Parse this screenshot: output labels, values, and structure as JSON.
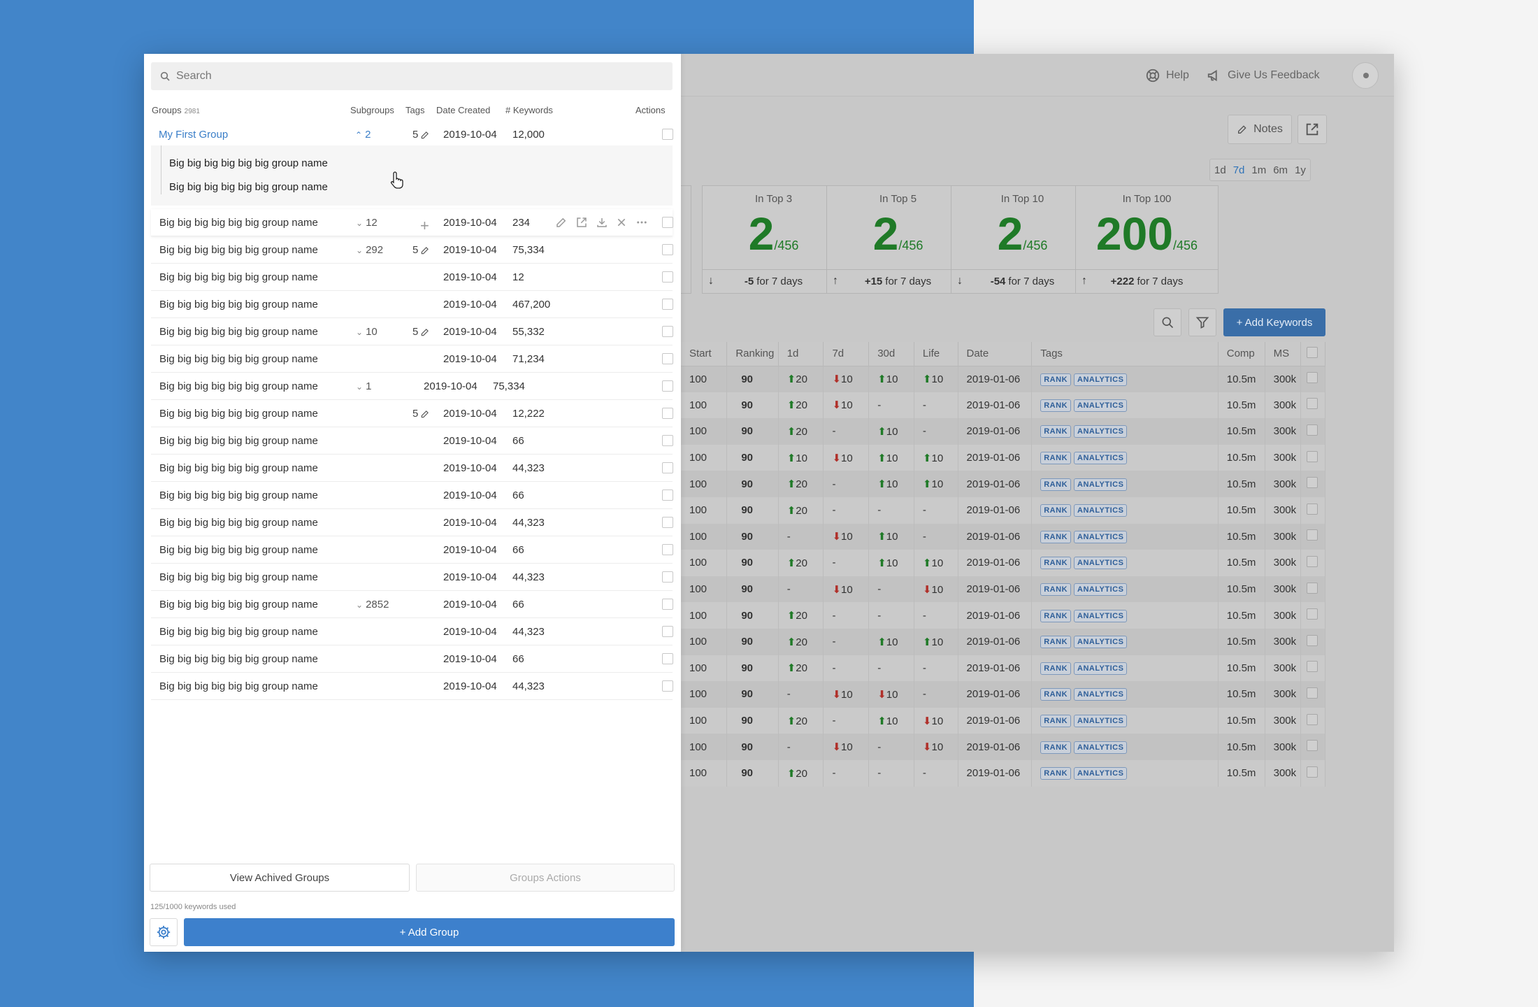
{
  "header": {
    "help_label": "Help",
    "feedback_label": "Give Us Feedback"
  },
  "toolbar": {
    "notes_label": "Notes",
    "add_keywords_label": "+ Add Keywords"
  },
  "periods": [
    "1d",
    "7d",
    "1m",
    "6m",
    "1y"
  ],
  "active_period": "7d",
  "cards": [
    {
      "title": "In Top 3",
      "value": "2",
      "total": "/456",
      "direction": "down",
      "delta": "-5",
      "suffix": "for 7 days"
    },
    {
      "title": "In Top 5",
      "value": "2",
      "total": "/456",
      "direction": "up",
      "delta": "+15",
      "suffix": "for 7 days"
    },
    {
      "title": "In Top 10",
      "value": "2",
      "total": "/456",
      "direction": "down",
      "delta": "-54",
      "suffix": "for 7 days"
    },
    {
      "title": "In Top 100",
      "value": "200",
      "total": "/456",
      "direction": "up",
      "delta": "+222",
      "suffix": "for 7 days"
    }
  ],
  "keyword_table": {
    "columns": [
      "Start",
      "Ranking",
      "1d",
      "7d",
      "30d",
      "Life",
      "Date",
      "Tags",
      "Comp",
      "MS"
    ],
    "rows": [
      {
        "start": "100",
        "ranking": "90",
        "d1": "+20",
        "d7": "-10",
        "d30": "+10",
        "life": "+10",
        "date": "2019-01-06",
        "tags": [
          "RANK",
          "ANALYTICS"
        ],
        "comp": "10.5m",
        "ms": "300k"
      },
      {
        "start": "100",
        "ranking": "90",
        "d1": "+20",
        "d7": "-10",
        "d30": "-",
        "life": "-",
        "date": "2019-01-06",
        "tags": [
          "RANK",
          "ANALYTICS"
        ],
        "comp": "10.5m",
        "ms": "300k"
      },
      {
        "start": "100",
        "ranking": "90",
        "d1": "+20",
        "d7": "-",
        "d30": "+10",
        "life": "-",
        "date": "2019-01-06",
        "tags": [
          "RANK",
          "ANALYTICS"
        ],
        "comp": "10.5m",
        "ms": "300k"
      },
      {
        "start": "100",
        "ranking": "90",
        "d1": "+10",
        "d7": "-10",
        "d30": "+10",
        "life": "+10",
        "date": "2019-01-06",
        "tags": [
          "RANK",
          "ANALYTICS"
        ],
        "comp": "10.5m",
        "ms": "300k"
      },
      {
        "start": "100",
        "ranking": "90",
        "d1": "+20",
        "d7": "-",
        "d30": "+10",
        "life": "+10",
        "date": "2019-01-06",
        "tags": [
          "RANK",
          "ANALYTICS"
        ],
        "comp": "10.5m",
        "ms": "300k"
      },
      {
        "start": "100",
        "ranking": "90",
        "d1": "+20",
        "d7": "-",
        "d30": "-",
        "life": "-",
        "date": "2019-01-06",
        "tags": [
          "RANK",
          "ANALYTICS"
        ],
        "comp": "10.5m",
        "ms": "300k"
      },
      {
        "start": "100",
        "ranking": "90",
        "d1": "-",
        "d7": "-10",
        "d30": "+10",
        "life": "-",
        "date": "2019-01-06",
        "tags": [
          "RANK",
          "ANALYTICS"
        ],
        "comp": "10.5m",
        "ms": "300k"
      },
      {
        "start": "100",
        "ranking": "90",
        "d1": "+20",
        "d7": "-",
        "d30": "+10",
        "life": "+10",
        "date": "2019-01-06",
        "tags": [
          "RANK",
          "ANALYTICS"
        ],
        "comp": "10.5m",
        "ms": "300k"
      },
      {
        "start": "100",
        "ranking": "90",
        "d1": "-",
        "d7": "-10",
        "d30": "-",
        "life": "-10",
        "date": "2019-01-06",
        "tags": [
          "RANK",
          "ANALYTICS"
        ],
        "comp": "10.5m",
        "ms": "300k"
      },
      {
        "start": "100",
        "ranking": "90",
        "d1": "+20",
        "d7": "-",
        "d30": "-",
        "life": "-",
        "date": "2019-01-06",
        "tags": [
          "RANK",
          "ANALYTICS"
        ],
        "comp": "10.5m",
        "ms": "300k"
      },
      {
        "start": "100",
        "ranking": "90",
        "d1": "+20",
        "d7": "-",
        "d30": "+10",
        "life": "+10",
        "date": "2019-01-06",
        "tags": [
          "RANK",
          "ANALYTICS"
        ],
        "comp": "10.5m",
        "ms": "300k"
      },
      {
        "start": "100",
        "ranking": "90",
        "d1": "+20",
        "d7": "-",
        "d30": "-",
        "life": "-",
        "date": "2019-01-06",
        "tags": [
          "RANK",
          "ANALYTICS"
        ],
        "comp": "10.5m",
        "ms": "300k"
      },
      {
        "start": "100",
        "ranking": "90",
        "d1": "-",
        "d7": "-10",
        "d30": "-10",
        "life": "-",
        "date": "2019-01-06",
        "tags": [
          "RANK",
          "ANALYTICS"
        ],
        "comp": "10.5m",
        "ms": "300k"
      },
      {
        "start": "100",
        "ranking": "90",
        "d1": "+20",
        "d7": "-",
        "d30": "+10",
        "life": "-10",
        "date": "2019-01-06",
        "tags": [
          "RANK",
          "ANALYTICS"
        ],
        "comp": "10.5m",
        "ms": "300k"
      },
      {
        "start": "100",
        "ranking": "90",
        "d1": "-",
        "d7": "-10",
        "d30": "-",
        "life": "-10",
        "date": "2019-01-06",
        "tags": [
          "RANK",
          "ANALYTICS"
        ],
        "comp": "10.5m",
        "ms": "300k"
      },
      {
        "start": "100",
        "ranking": "90",
        "d1": "+20",
        "d7": "-",
        "d30": "-",
        "life": "-",
        "date": "2019-01-06",
        "tags": [
          "RANK",
          "ANALYTICS"
        ],
        "comp": "10.5m",
        "ms": "300k"
      }
    ]
  },
  "groups_panel": {
    "search_placeholder": "Search",
    "headers": {
      "groups": "Groups",
      "groups_count": "2981",
      "subgroups": "Subgroups",
      "tags": "Tags",
      "date_created": "Date Created",
      "keywords": "# Keywords",
      "actions": "Actions"
    },
    "first_group": {
      "name": "My First Group",
      "subgroups": "2",
      "tags": "5",
      "date": "2019-10-04",
      "keywords": "12,000"
    },
    "subgroups": [
      "Big big big big big big  group name",
      "Big big big big big big  group name"
    ],
    "rows": [
      {
        "name": "Big big big big big big  group name",
        "subgroups": "12",
        "tags": "",
        "date": "2019-10-04",
        "keywords": "234"
      },
      {
        "name": "Big big big big big big  group name",
        "subgroups": "292",
        "tags": "5",
        "date": "2019-10-04",
        "keywords": "75,334"
      },
      {
        "name": "Big big big big big big  group name",
        "subgroups": "",
        "tags": "",
        "date": "2019-10-04",
        "keywords": "12"
      },
      {
        "name": "Big big big big big big  group name",
        "subgroups": "",
        "tags": "",
        "date": "2019-10-04",
        "keywords": "467,200"
      },
      {
        "name": "Big big big big big big  group name",
        "subgroups": "10",
        "tags": "5",
        "date": "2019-10-04",
        "keywords": "55,332"
      },
      {
        "name": "Big big big big big big  group name",
        "subgroups": "",
        "tags": "",
        "date": "2019-10-04",
        "keywords": "71,234"
      },
      {
        "name": "Big big big big big big  group name",
        "subgroups": "1",
        "tags": "",
        "date": "2019-10-04",
        "keywords": "75,334"
      },
      {
        "name": "Big big big big big big  group name",
        "subgroups": "",
        "tags": "5",
        "date": "2019-10-04",
        "keywords": "12,222"
      },
      {
        "name": "Big big big big big big  group name",
        "subgroups": "",
        "tags": "",
        "date": "2019-10-04",
        "keywords": "66"
      },
      {
        "name": "Big big big big big big  group name",
        "subgroups": "",
        "tags": "",
        "date": "2019-10-04",
        "keywords": "44,323"
      },
      {
        "name": "Big big big big big big  group name",
        "subgroups": "",
        "tags": "",
        "date": "2019-10-04",
        "keywords": "66"
      },
      {
        "name": "Big big big big big big  group name",
        "subgroups": "",
        "tags": "",
        "date": "2019-10-04",
        "keywords": "44,323"
      },
      {
        "name": "Big big big big big big  group name",
        "subgroups": "",
        "tags": "",
        "date": "2019-10-04",
        "keywords": "66"
      },
      {
        "name": "Big big big big big big  group name",
        "subgroups": "",
        "tags": "",
        "date": "2019-10-04",
        "keywords": "44,323"
      },
      {
        "name": "Big big big big big big  group name",
        "subgroups": "2852",
        "tags": "",
        "date": "2019-10-04",
        "keywords": "66"
      },
      {
        "name": "Big big big big big big  group name",
        "subgroups": "",
        "tags": "",
        "date": "2019-10-04",
        "keywords": "44,323"
      },
      {
        "name": "Big big big big big big  group name",
        "subgroups": "",
        "tags": "",
        "date": "2019-10-04",
        "keywords": "66"
      },
      {
        "name": "Big big big big big big  group name",
        "subgroups": "",
        "tags": "",
        "date": "2019-10-04",
        "keywords": "44,323"
      }
    ],
    "view_archived_label": "View Achived Groups",
    "group_actions_label": "Groups Actions",
    "usage_text": "125/1000 keywords used",
    "add_group_label": "+ Add Group"
  }
}
